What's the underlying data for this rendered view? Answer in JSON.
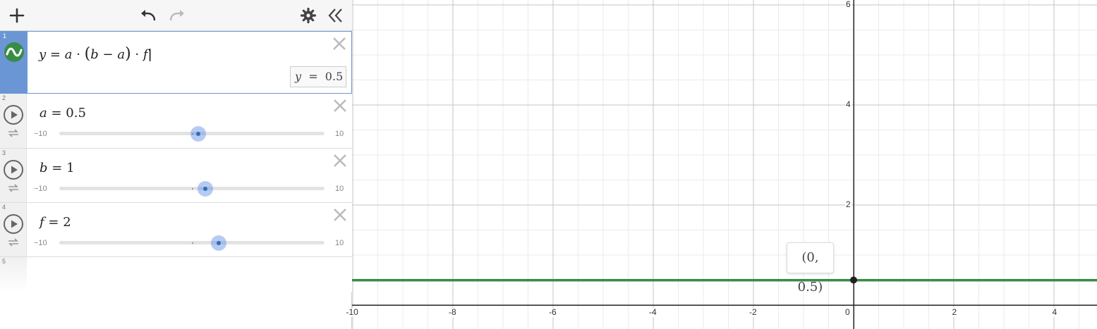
{
  "toolbar": {
    "add": "add-expression",
    "undo": "undo",
    "redo": "redo",
    "settings": "graph-settings",
    "collapse": "collapse-panel"
  },
  "expressions": [
    {
      "index": "1",
      "formula": {
        "y": "y",
        "eq": "=",
        "a": "a",
        "dot1": "·",
        "lp": "(",
        "b": "b",
        "minus": "−",
        "a2": "a",
        "rp": ")",
        "dot2": "·",
        "f": "f"
      },
      "result": {
        "var": "y",
        "eq": "=",
        "value": "0.5"
      },
      "color": "#388c46"
    },
    {
      "index": "2",
      "var": "a",
      "eq": "=",
      "value": "0.5",
      "min": "−10",
      "max": "10",
      "fraction": 0.525
    },
    {
      "index": "3",
      "var": "b",
      "eq": "=",
      "value": "1",
      "min": "−10",
      "max": "10",
      "fraction": 0.55
    },
    {
      "index": "4",
      "var": "f",
      "eq": "=",
      "value": "2",
      "min": "−10",
      "max": "10",
      "fraction": 0.6
    },
    {
      "index": "5"
    }
  ],
  "graph": {
    "x_ticks": [
      "-10",
      "-8",
      "-6",
      "-4",
      "-2",
      "0",
      "2",
      "4"
    ],
    "y_ticks": [
      "6",
      "4",
      "2"
    ],
    "point_label": "(0, 0.5)",
    "line_y": 0.5,
    "line_color": "#388c46"
  }
}
